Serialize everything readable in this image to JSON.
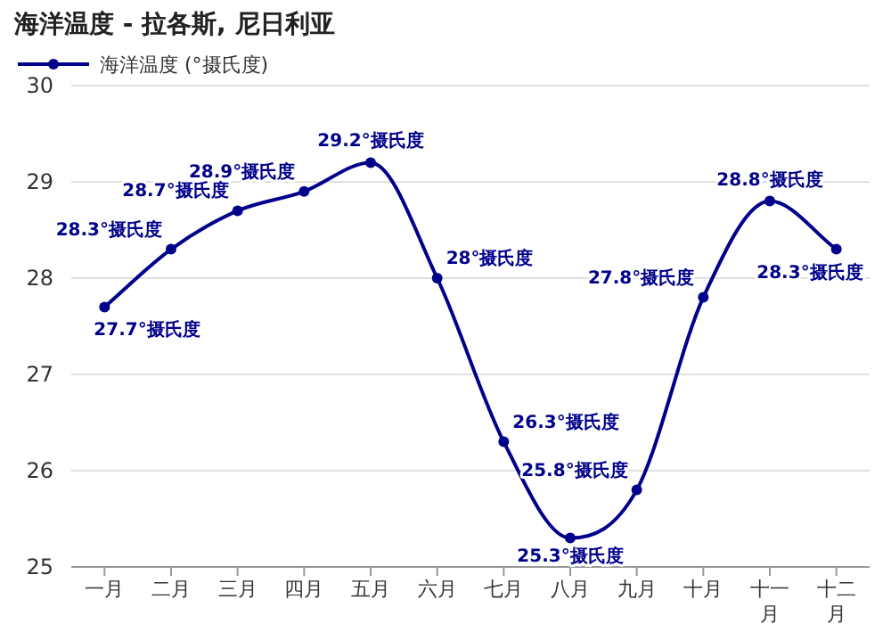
{
  "chart_data": {
    "type": "line",
    "title": "海洋温度 - 拉各斯, 尼日利亚",
    "categories": [
      "一月",
      "二月",
      "三月",
      "四月",
      "五月",
      "六月",
      "七月",
      "八月",
      "九月",
      "十月",
      "十一月",
      "十二月"
    ],
    "series": [
      {
        "name": "海洋温度 (°摄氏度)",
        "color": "#00008b",
        "values": [
          27.7,
          28.3,
          28.7,
          28.9,
          29.2,
          28,
          26.3,
          25.3,
          25.8,
          27.8,
          28.8,
          28.3
        ],
        "value_labels": [
          "27.7°摄氏度",
          "28.3°摄氏度",
          "28.7°摄氏度",
          "28.9°摄氏度",
          "29.2°摄氏度",
          "28°摄氏度",
          "26.3°摄氏度",
          "25.3°摄氏度",
          "25.8°摄氏度",
          "27.8°摄氏度",
          "28.8°摄氏度",
          "28.3°摄氏度"
        ]
      }
    ],
    "ylim": [
      25,
      30
    ],
    "yticks": [
      25,
      26,
      27,
      28,
      29,
      30
    ],
    "grid": "y",
    "legend": "top left",
    "marker": "circle",
    "line_style": "solid"
  }
}
